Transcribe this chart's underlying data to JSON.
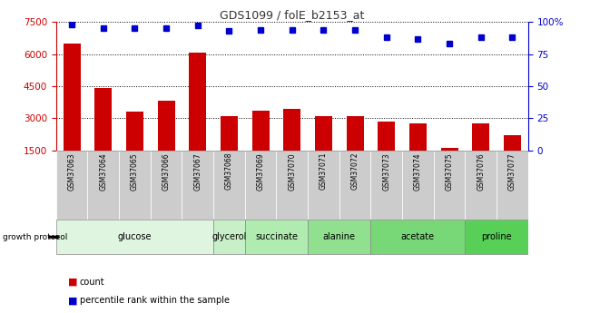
{
  "title": "GDS1099 / folE_b2153_at",
  "samples": [
    "GSM37063",
    "GSM37064",
    "GSM37065",
    "GSM37066",
    "GSM37067",
    "GSM37068",
    "GSM37069",
    "GSM37070",
    "GSM37071",
    "GSM37072",
    "GSM37073",
    "GSM37074",
    "GSM37075",
    "GSM37076",
    "GSM37077"
  ],
  "counts": [
    6500,
    4400,
    3300,
    3800,
    6050,
    3100,
    3350,
    3450,
    3100,
    3100,
    2850,
    2750,
    1600,
    2750,
    2200
  ],
  "percentiles": [
    98,
    95,
    95,
    95,
    97,
    93,
    94,
    94,
    94,
    94,
    88,
    87,
    83,
    88,
    88
  ],
  "bar_color": "#cc0000",
  "dot_color": "#0000cc",
  "left_ylim": [
    1500,
    7500
  ],
  "left_yticks": [
    1500,
    3000,
    4500,
    6000,
    7500
  ],
  "right_ylim": [
    0,
    100
  ],
  "right_yticks": [
    0,
    25,
    50,
    75,
    100
  ],
  "right_yticklabels": [
    "0",
    "25",
    "50",
    "75",
    "100%"
  ],
  "groups": [
    {
      "label": "glucose",
      "start": 0,
      "end": 4,
      "color": "#e0f5e0"
    },
    {
      "label": "glycerol",
      "start": 5,
      "end": 5,
      "color": "#c8f0c8"
    },
    {
      "label": "succinate",
      "start": 6,
      "end": 7,
      "color": "#b0ebb0"
    },
    {
      "label": "alanine",
      "start": 8,
      "end": 9,
      "color": "#90e090"
    },
    {
      "label": "acetate",
      "start": 10,
      "end": 12,
      "color": "#78d878"
    },
    {
      "label": "proline",
      "start": 13,
      "end": 14,
      "color": "#58d058"
    }
  ],
  "xtick_bg_color": "#cccccc",
  "growth_protocol_label": "growth protocol",
  "legend_bar_label": "count",
  "legend_dot_label": "percentile rank within the sample",
  "left_axis_color": "#cc0000",
  "right_axis_color": "#0000cc"
}
